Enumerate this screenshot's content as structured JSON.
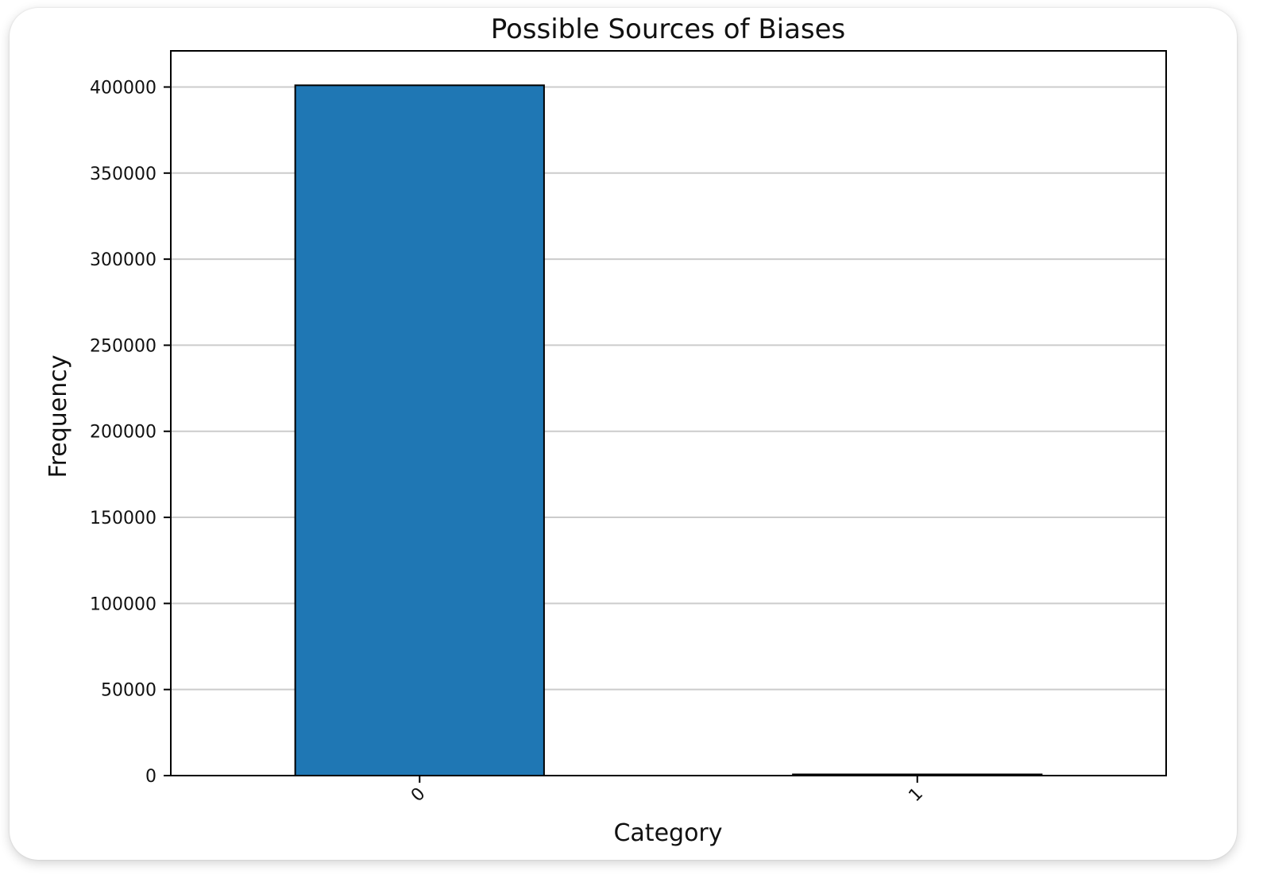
{
  "chart_data": {
    "type": "bar",
    "title": "Possible Sources of Biases",
    "xlabel": "Category",
    "ylabel": "Frequency",
    "categories": [
      "0",
      "1"
    ],
    "values": [
      401000,
      700
    ],
    "ylim": [
      0,
      421000
    ],
    "yticks": [
      0,
      50000,
      100000,
      150000,
      200000,
      250000,
      300000,
      350000,
      400000
    ],
    "ytick_labels": [
      "0",
      "50000",
      "100000",
      "150000",
      "200000",
      "250000",
      "300000",
      "350000",
      "400000"
    ],
    "grid": "y-axis horizontal lines",
    "bar_color": "#1f77b4",
    "bar_edge_color": "#000000",
    "grid_color": "#cccccc",
    "legend": "none",
    "xtick_rotation_deg": 45
  }
}
